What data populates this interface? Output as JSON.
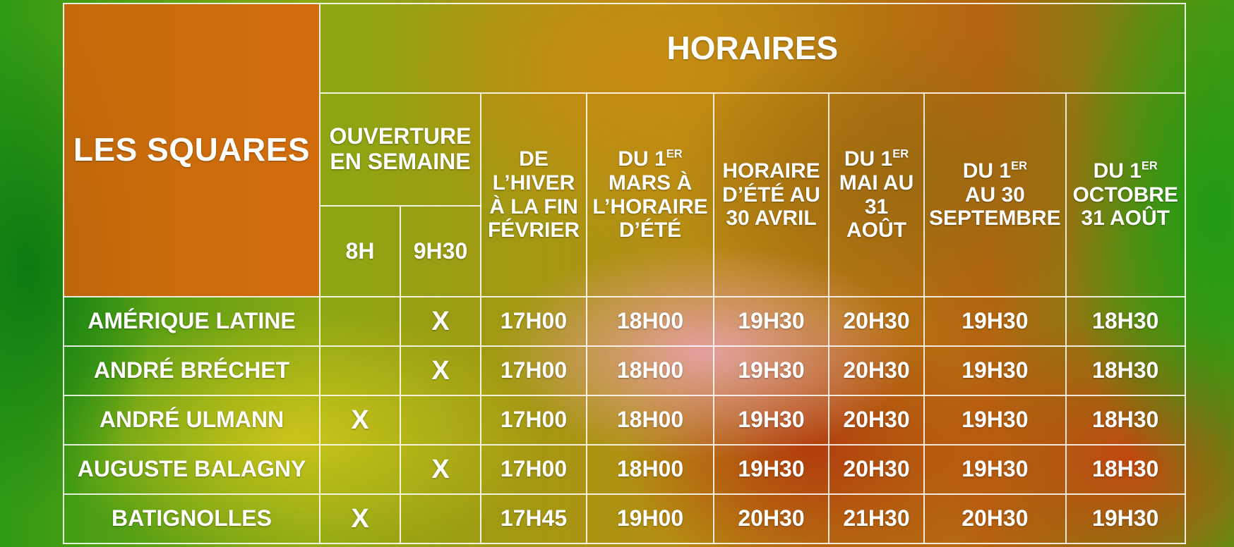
{
  "title": "HORAIRES",
  "corner_label": "LES SQUARES",
  "opening_header": "OUVERTURE EN SEMAINE",
  "opening_sub": [
    "8H",
    "9H30"
  ],
  "periods": [
    {
      "label": "DE L’HIVER À LA FIN FÉVRIER"
    },
    {
      "label": "MARS À L’HORAIRE D’ÉTÉ",
      "prefix": "DU 1",
      "sup": "ER"
    },
    {
      "label": "HORAIRE D’ÉTÉ AU 30 AVRIL"
    },
    {
      "label": "MAI AU 31 AOÛT",
      "prefix": "DU 1",
      "sup": "ER"
    },
    {
      "label": "AU 30 SEPTEMBRE",
      "prefix": "DU 1",
      "sup": "ER"
    },
    {
      "label": "OCTOBRE 31 AOÛT",
      "prefix": "DU 1",
      "sup": "ER"
    }
  ],
  "rows": [
    {
      "name": "AMÉRIQUE LATINE",
      "h8": "",
      "h930": "X",
      "times": [
        "17H00",
        "18H00",
        "19H30",
        "20H30",
        "19H30",
        "18H30"
      ]
    },
    {
      "name": "ANDRÉ BRÉCHET",
      "h8": "",
      "h930": "X",
      "times": [
        "17H00",
        "18H00",
        "19H30",
        "20H30",
        "19H30",
        "18H30"
      ]
    },
    {
      "name": "ANDRÉ ULMANN",
      "h8": "X",
      "h930": "",
      "times": [
        "17H00",
        "18H00",
        "19H30",
        "20H30",
        "19H30",
        "18H30"
      ]
    },
    {
      "name": "AUGUSTE BALAGNY",
      "h8": "",
      "h930": "X",
      "times": [
        "17H00",
        "18H00",
        "19H30",
        "20H30",
        "19H30",
        "18H30"
      ]
    },
    {
      "name": "BATIGNOLLES",
      "h8": "X",
      "h930": "",
      "times": [
        "17H45",
        "19H00",
        "20H30",
        "21H30",
        "20H30",
        "19H30"
      ]
    }
  ],
  "colors": {
    "corner": "#e25f0a",
    "grid": "#ffffff",
    "text": "#ffffff"
  }
}
